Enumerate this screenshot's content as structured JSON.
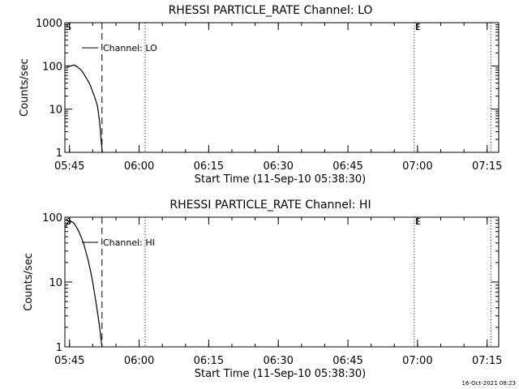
{
  "colors": {
    "background": "#ffffff",
    "foreground": "#000000"
  },
  "footer_timestamp": "16-Oct-2021 08:23",
  "chart_data": [
    {
      "type": "line",
      "title": "RHESSI PARTICLE_RATE Channel: LO",
      "xlabel": "Start Time (11-Sep-10 05:38:30)",
      "ylabel": "Counts/sec",
      "yscale": "log",
      "ylim": [
        1,
        1000
      ],
      "yticks": [
        1,
        10,
        100,
        1000
      ],
      "ytick_labels": [
        "1",
        "10",
        "100",
        "1000"
      ],
      "xlim_minutes": [
        5.5,
        99.0
      ],
      "xticks_minutes": [
        6.5,
        21.5,
        36.5,
        51.5,
        66.5,
        81.5,
        96.5
      ],
      "xtick_labels": [
        "05:45",
        "06:00",
        "06:15",
        "06:30",
        "06:45",
        "07:00",
        "07:15"
      ],
      "markers": [
        {
          "label": "S",
          "minute": 5.5,
          "style": "none"
        },
        {
          "label": "",
          "minute": 13.5,
          "style": "dashed"
        },
        {
          "label": "",
          "minute": 22.8,
          "style": "dotted"
        },
        {
          "label": "E",
          "minute": 80.8,
          "style": "dotted"
        },
        {
          "label": "",
          "minute": 97.3,
          "style": "dotted"
        }
      ],
      "legend": "Channel: LO",
      "series": [
        {
          "name": "Channel: LO",
          "x": [
            6.0,
            6.8,
            7.5,
            8.0,
            8.5,
            9.0,
            9.5,
            10.0,
            10.5,
            11.0,
            11.5,
            12.0,
            12.5,
            13.0,
            13.3,
            13.5,
            13.6
          ],
          "values": [
            95,
            100,
            105,
            98,
            90,
            80,
            68,
            55,
            45,
            35,
            25,
            18,
            12,
            5,
            2,
            1.2,
            1
          ]
        }
      ]
    },
    {
      "type": "line",
      "title": "RHESSI PARTICLE_RATE Channel: HI",
      "xlabel": "Start Time (11-Sep-10 05:38:30)",
      "ylabel": "Counts/sec",
      "yscale": "log",
      "ylim": [
        1,
        100
      ],
      "yticks": [
        1,
        10,
        100
      ],
      "ytick_labels": [
        "1",
        "10",
        "100"
      ],
      "xlim_minutes": [
        5.5,
        99.0
      ],
      "xticks_minutes": [
        6.5,
        21.5,
        36.5,
        51.5,
        66.5,
        81.5,
        96.5
      ],
      "xtick_labels": [
        "05:45",
        "06:00",
        "06:15",
        "06:30",
        "06:45",
        "07:00",
        "07:15"
      ],
      "markers": [
        {
          "label": "S",
          "minute": 5.5,
          "style": "none"
        },
        {
          "label": "",
          "minute": 13.5,
          "style": "dashed"
        },
        {
          "label": "",
          "minute": 22.8,
          "style": "dotted"
        },
        {
          "label": "E",
          "minute": 80.8,
          "style": "dotted"
        },
        {
          "label": "",
          "minute": 97.3,
          "style": "dotted"
        }
      ],
      "legend": "Channel: HI",
      "series": [
        {
          "name": "Channel: HI",
          "x": [
            5.6,
            6.0,
            6.5,
            7.0,
            7.5,
            8.0,
            8.5,
            9.0,
            9.5,
            10.0,
            10.5,
            11.0,
            11.5,
            12.0,
            12.5,
            13.0,
            13.3,
            13.5
          ],
          "values": [
            70,
            80,
            90,
            85,
            80,
            70,
            60,
            50,
            40,
            30,
            22,
            15,
            10,
            6,
            3.5,
            2,
            1.3,
            1
          ]
        }
      ]
    }
  ]
}
